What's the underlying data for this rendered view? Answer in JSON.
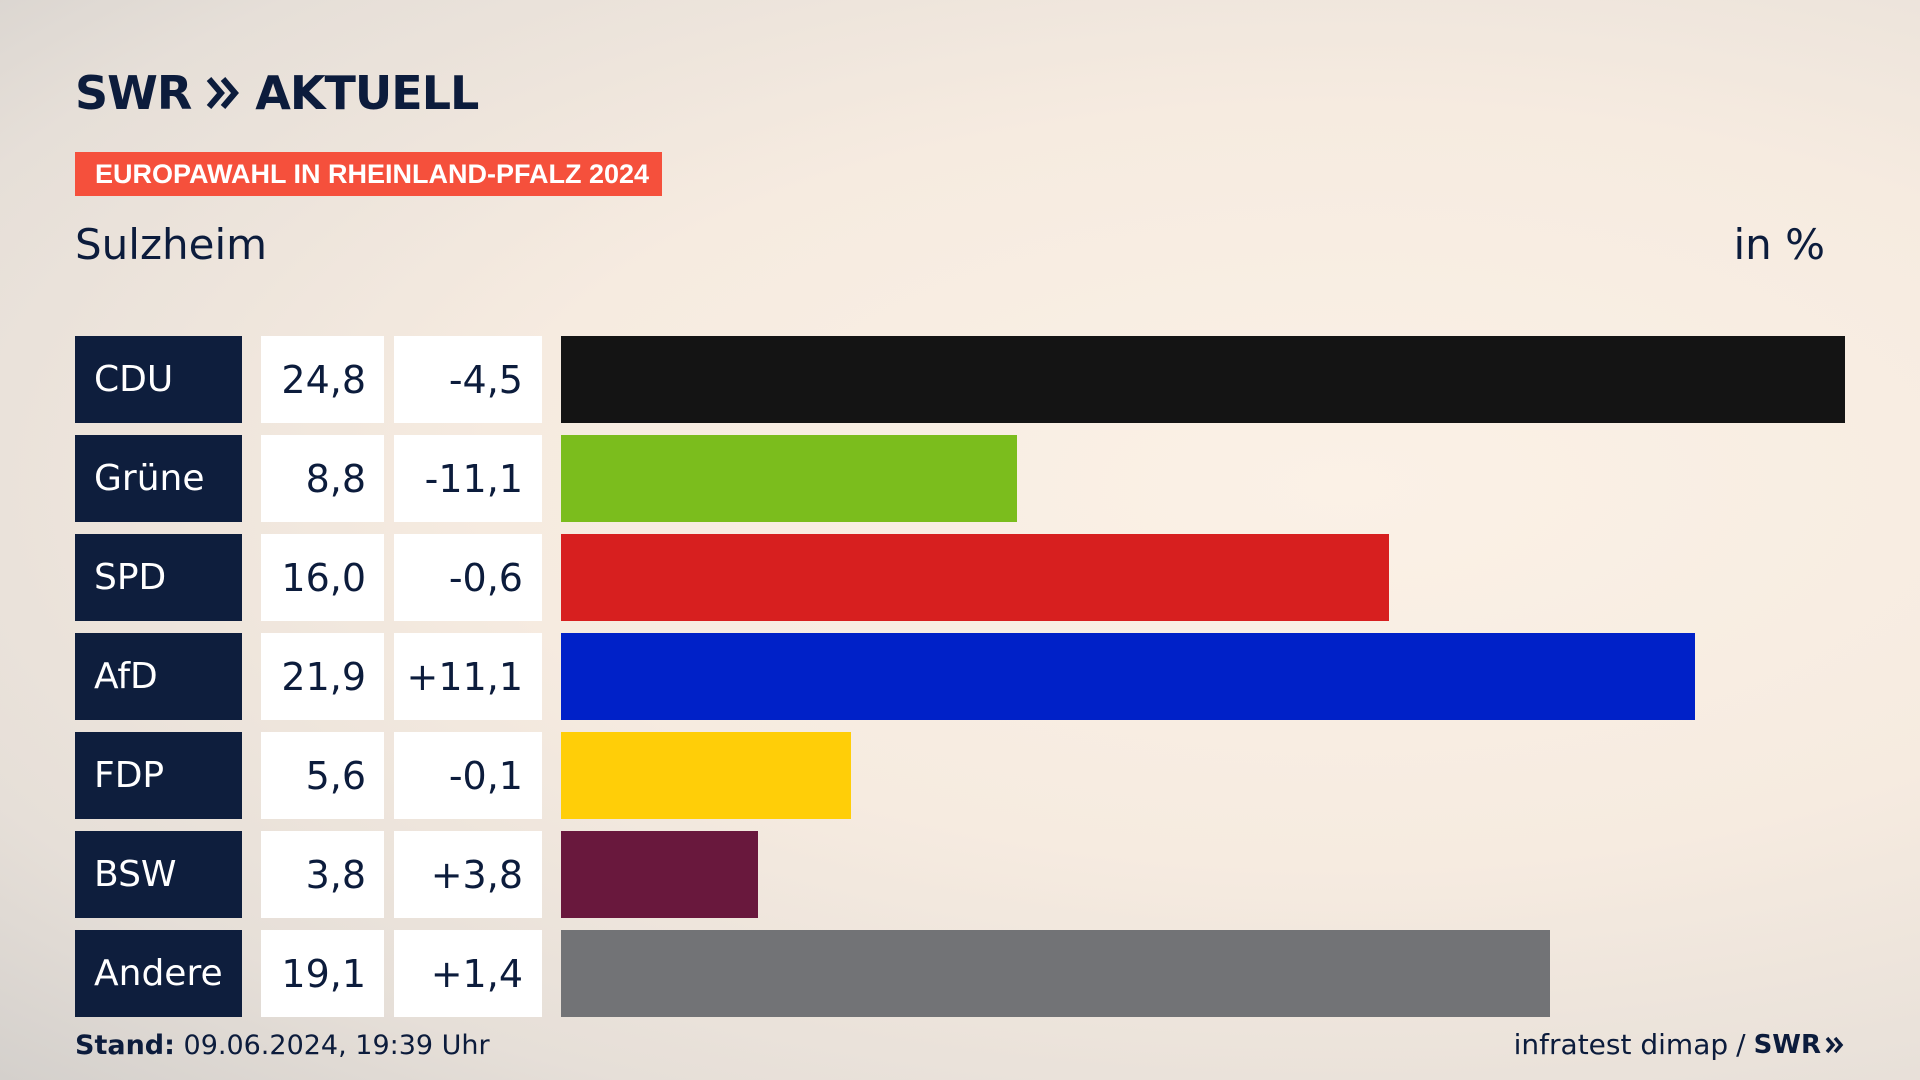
{
  "brand": {
    "name": "SWR",
    "product": "AKTUELL"
  },
  "banner": "EUROPAWAHL IN RHEINLAND-PFALZ 2024",
  "location": "Sulzheim",
  "unit": "in %",
  "footer": {
    "stand_label": "Stand:",
    "stand_value": "09.06.2024, 19:39 Uhr",
    "source": "infratest dimap",
    "separator": "/",
    "source_brand": "SWR"
  },
  "chart_data": {
    "type": "bar",
    "orientation": "horizontal",
    "categories": [
      "CDU",
      "Grüne",
      "SPD",
      "AfD",
      "FDP",
      "BSW",
      "Andere"
    ],
    "values": [
      24.8,
      8.8,
      16.0,
      21.9,
      5.6,
      3.8,
      19.1
    ],
    "value_labels": [
      "24,8",
      "8,8",
      "16,0",
      "21,9",
      "5,6",
      "3,8",
      "19,1"
    ],
    "diff_labels": [
      "-4,5",
      "-11,1",
      "-0,6",
      "+11,1",
      "-0,1",
      "+3,8",
      "+1,4"
    ],
    "colors": [
      "#141414",
      "#7bbd1d",
      "#d71f1f",
      "#0021c8",
      "#ffce08",
      "#69183d",
      "#727376"
    ],
    "xlim": [
      0,
      24.8
    ]
  }
}
